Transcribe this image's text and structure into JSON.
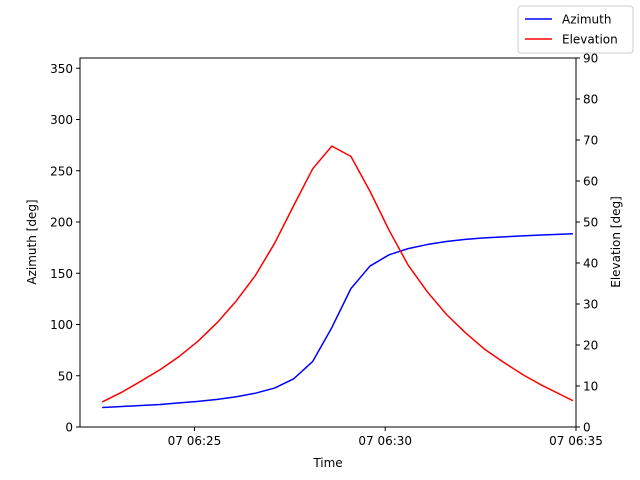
{
  "chart_data": {
    "type": "line",
    "title": "",
    "xlabel": "Time",
    "ylabel": "Azimuth [deg]",
    "y2label": "Elevation [deg]",
    "x_unit": "minutes after 06:00",
    "xlim": [
      22.0,
      35.0
    ],
    "ylim": [
      0,
      360
    ],
    "y2lim": [
      0,
      90
    ],
    "x_ticks": [
      {
        "value": 25,
        "label": "07 06:25"
      },
      {
        "value": 30,
        "label": "07 06:30"
      },
      {
        "value": 35,
        "label": "07 06:35"
      }
    ],
    "y_ticks": [
      0,
      50,
      100,
      150,
      200,
      250,
      300,
      350
    ],
    "y2_ticks": [
      0,
      10,
      20,
      30,
      40,
      50,
      60,
      70,
      80,
      90
    ],
    "legend_position": "top-right",
    "grid": false,
    "series": [
      {
        "name": "Azimuth",
        "axis": "left",
        "color": "#0000ff",
        "x": [
          22.6,
          23.1,
          23.6,
          24.1,
          24.6,
          25.1,
          25.6,
          26.1,
          26.6,
          27.1,
          27.6,
          28.1,
          28.6,
          29.1,
          29.6,
          30.1,
          30.6,
          31.1,
          31.6,
          32.1,
          32.6,
          33.1,
          33.6,
          34.1,
          34.6,
          34.9
        ],
        "values": [
          19,
          20,
          21,
          22,
          23.5,
          25,
          27,
          29.5,
          33,
          38,
          47,
          64,
          97,
          135,
          157,
          168,
          174,
          178,
          181,
          183,
          184.5,
          185.5,
          186.5,
          187.3,
          188,
          188.5
        ]
      },
      {
        "name": "Elevation",
        "axis": "right",
        "color": "#ff0000",
        "x": [
          22.6,
          23.1,
          23.6,
          24.1,
          24.6,
          25.1,
          25.6,
          26.1,
          26.6,
          27.1,
          27.6,
          28.1,
          28.6,
          29.1,
          29.6,
          30.1,
          30.6,
          31.1,
          31.6,
          32.1,
          32.6,
          33.1,
          33.6,
          34.1,
          34.6,
          34.9
        ],
        "values": [
          6.2,
          8.5,
          11.2,
          14.0,
          17.2,
          21.0,
          25.5,
          30.8,
          37.0,
          44.8,
          54.0,
          63.0,
          68.5,
          66.0,
          57.5,
          48.0,
          39.5,
          33.0,
          27.5,
          23.0,
          19.0,
          15.8,
          12.8,
          10.2,
          7.9,
          6.5
        ]
      }
    ]
  }
}
